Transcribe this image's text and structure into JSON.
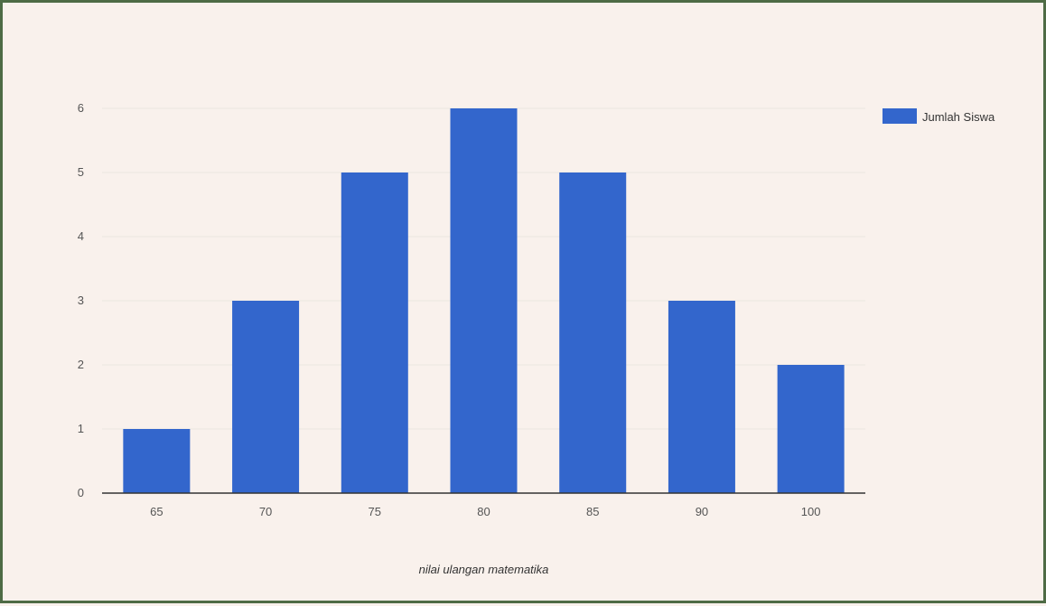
{
  "chart_data": {
    "type": "bar",
    "categories": [
      "65",
      "70",
      "75",
      "80",
      "85",
      "90",
      "100"
    ],
    "series": [
      {
        "name": "Jumlah Siswa",
        "values": [
          1,
          3,
          5,
          6,
          5,
          3,
          2
        ],
        "color": "#3366cc"
      }
    ],
    "title": "",
    "xlabel": "nilai ulangan matematika",
    "ylabel": "",
    "ylim": [
      0,
      6
    ],
    "yticks": [
      "0",
      "1",
      "2",
      "3",
      "4",
      "5",
      "6"
    ],
    "grid": true,
    "legend": "right"
  }
}
